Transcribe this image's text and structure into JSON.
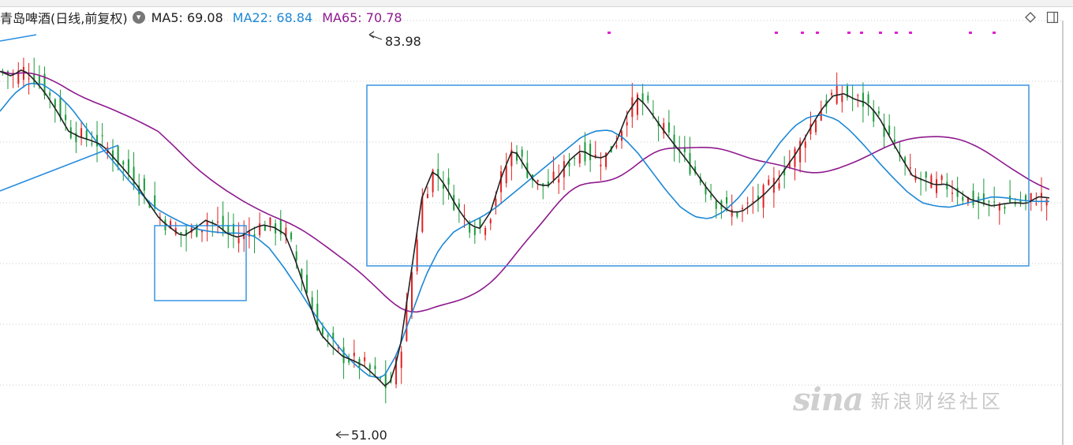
{
  "header": {
    "stock_name": "青岛啤酒(日线,前复权)",
    "ma5": "MA5: 69.08",
    "ma22": "MA22: 68.84",
    "ma65": "MA65: 70.78",
    "ma5_color": "#222222",
    "ma22_color": "#1e88d6",
    "ma65_color": "#8e1a8e"
  },
  "chart_data": {
    "type": "candlestick",
    "title": "青岛啤酒(日线,前复权)",
    "annotations": [
      {
        "label": "83.98",
        "kind": "high"
      },
      {
        "label": "51.00",
        "kind": "low"
      }
    ],
    "ma5_close": [
      79.9,
      79.5,
      80.1,
      79.2,
      78.0,
      76.5,
      74.8,
      74.3,
      74.0,
      73.6,
      72.5,
      71.4,
      70.2,
      68.7,
      67.3,
      66.5,
      65.8,
      66.4,
      67.2,
      66.8,
      66.0,
      65.7,
      66.4,
      66.8,
      66.6,
      66.0,
      63.5,
      60.5,
      57.6,
      56.5,
      55.6,
      55.2,
      54.7,
      53.8,
      52.8,
      55.8,
      62.4,
      69.2,
      71.5,
      70.2,
      68.4,
      67.0,
      66.4,
      67.9,
      71.0,
      73.4,
      71.8,
      70.3,
      70.1,
      71.0,
      72.4,
      73.2,
      72.6,
      72.5,
      73.8,
      76.3,
      77.7,
      76.5,
      75.1,
      73.8,
      72.6,
      71.3,
      69.9,
      68.7,
      67.9,
      67.9,
      68.6,
      69.4,
      70.4,
      71.8,
      73.2,
      75.0,
      76.6,
      77.8,
      78.0,
      77.5,
      77.2,
      76.1,
      74.3,
      72.6,
      71.0,
      70.6,
      70.2,
      70.3,
      69.7,
      69.0,
      68.7,
      68.4,
      68.6,
      68.7,
      68.6,
      69.2,
      69.1
    ],
    "ma22": [
      76.5,
      78.0,
      78.9,
      78.8,
      78.0,
      76.8,
      75.2,
      73.6,
      72.2,
      70.7,
      69.4,
      68.2,
      67.5,
      66.9,
      66.4,
      66.2,
      66.1,
      66.1,
      65.8,
      64.8,
      63.2,
      61.4,
      59.5,
      57.8,
      56.2,
      54.9,
      53.9,
      53.7,
      55.8,
      59.1,
      62.4,
      64.8,
      66.2,
      66.9,
      67.5,
      68.3,
      69.3,
      70.3,
      71.3,
      72.3,
      73.3,
      74.3,
      74.8,
      74.9,
      74.2,
      72.9,
      71.3,
      69.7,
      68.3,
      67.5,
      67.3,
      67.9,
      69.0,
      70.5,
      72.1,
      73.8,
      75.2,
      76.0,
      76.2,
      75.8,
      74.8,
      73.5,
      72.1,
      70.8,
      69.6,
      68.7,
      68.4,
      68.3,
      68.6,
      68.9,
      69.2,
      69.1,
      68.9,
      68.8,
      68.8
    ]
  },
  "watermark": {
    "logo": "sina",
    "text": "新浪财经社区"
  }
}
